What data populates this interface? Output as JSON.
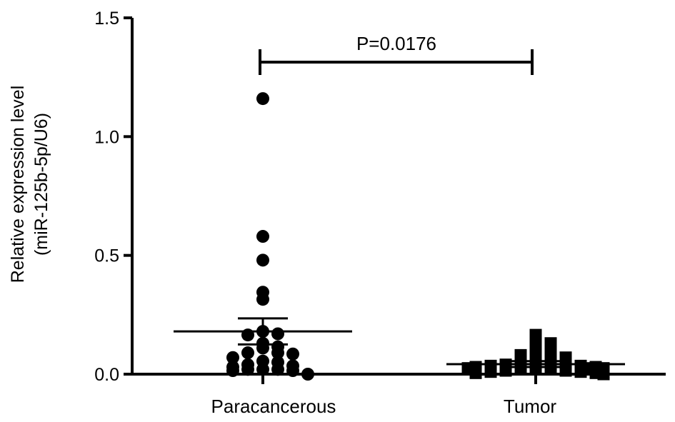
{
  "chart_data": {
    "type": "scatter",
    "title": "",
    "xlabel": "",
    "ylabel_lines": [
      "Relative expression level",
      "(miR-125b-5p/U6)"
    ],
    "ylim": [
      0,
      1.5
    ],
    "yticks": [
      0.0,
      0.5,
      1.0,
      1.5
    ],
    "ytick_labels": [
      "0.0",
      "0.5",
      "1.0",
      "1.5"
    ],
    "categories": [
      "Paracancerous",
      "Tumor"
    ],
    "series": [
      {
        "category": "Paracancerous",
        "marker": "circle",
        "mean": 0.18,
        "sem_upper": 0.235,
        "sem_lower": 0.125,
        "points": [
          1.16,
          0.58,
          0.48,
          0.345,
          0.315,
          0.18,
          0.17,
          0.165,
          0.13,
          0.115,
          0.11,
          0.09,
          0.09,
          0.085,
          0.07,
          0.055,
          0.05,
          0.04,
          0.035,
          0.03,
          0.02,
          0.02,
          0.02,
          0.015,
          0.015,
          0.0
        ]
      },
      {
        "category": "Tumor",
        "marker": "square",
        "mean": 0.042,
        "sem_upper": 0.055,
        "sem_lower": 0.03,
        "points": [
          0.165,
          0.145,
          0.13,
          0.105,
          0.09,
          0.08,
          0.07,
          0.055,
          0.05,
          0.045,
          0.04,
          0.04,
          0.035,
          0.035,
          0.03,
          0.03,
          0.025,
          0.025,
          0.025,
          0.02,
          0.02,
          0.02,
          0.015,
          0.015,
          0.01,
          0.01,
          0.005,
          0.005,
          0.0
        ]
      }
    ],
    "annotation": {
      "text": "P=0.0176",
      "between": [
        "Paracancerous",
        "Tumor"
      ]
    }
  }
}
